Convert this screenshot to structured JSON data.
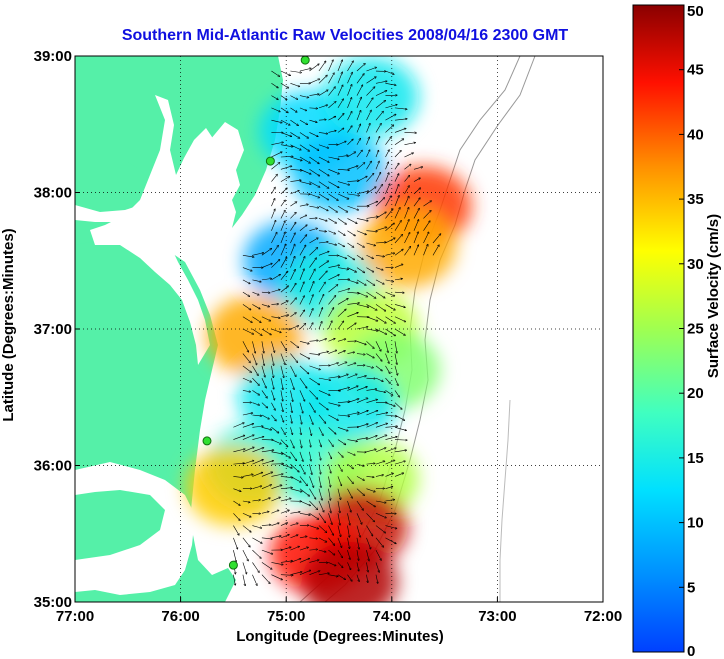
{
  "chart_data": {
    "type": "heatmap",
    "title": "Southern Mid-Atlantic Raw Velocities 2008/04/16 2300 GMT",
    "xlabel": "Longitude (Degrees:Minutes)",
    "ylabel": "Latitude (Degrees:Minutes)",
    "colorbar_label": "Surface Velocity (cm/s)",
    "xlim": [
      -77,
      -72
    ],
    "ylim": [
      35,
      39
    ],
    "x_ticks": [
      {
        "value": -77,
        "label": "77:00"
      },
      {
        "value": -76,
        "label": "76:00"
      },
      {
        "value": -75,
        "label": "75:00"
      },
      {
        "value": -74,
        "label": "74:00"
      },
      {
        "value": -73,
        "label": "73:00"
      },
      {
        "value": -72,
        "label": "72:00"
      }
    ],
    "y_ticks": [
      {
        "value": 35,
        "label": "35:00"
      },
      {
        "value": 36,
        "label": "36:00"
      },
      {
        "value": 37,
        "label": "37:00"
      },
      {
        "value": 38,
        "label": "38:00"
      },
      {
        "value": 39,
        "label": "39:00"
      }
    ],
    "colorbar_range": [
      0,
      50
    ],
    "colorbar_ticks": [
      0,
      5,
      10,
      15,
      20,
      25,
      30,
      35,
      40,
      45,
      50
    ],
    "grid": true,
    "colormap": "jet",
    "land_color": "#55f0a8",
    "title_color": "#1010e0",
    "stations": [
      {
        "lon": -74.82,
        "lat": 38.97
      },
      {
        "lon": -75.15,
        "lat": 38.23
      },
      {
        "lon": -75.75,
        "lat": 36.18
      },
      {
        "lon": -75.5,
        "lat": 35.27
      }
    ],
    "velocity_regions": [
      {
        "lon": -74.8,
        "lat": 38.45,
        "speed": 12
      },
      {
        "lon": -74.2,
        "lat": 38.7,
        "speed": 14
      },
      {
        "lon": -74.5,
        "lat": 38.15,
        "speed": 10
      },
      {
        "lon": -73.7,
        "lat": 37.9,
        "speed": 42
      },
      {
        "lon": -73.85,
        "lat": 37.6,
        "speed": 36
      },
      {
        "lon": -74.95,
        "lat": 37.5,
        "speed": 8
      },
      {
        "lon": -74.6,
        "lat": 37.3,
        "speed": 15
      },
      {
        "lon": -74.2,
        "lat": 37.0,
        "speed": 27
      },
      {
        "lon": -74.0,
        "lat": 36.7,
        "speed": 23
      },
      {
        "lon": -75.3,
        "lat": 36.95,
        "speed": 36
      },
      {
        "lon": -75.0,
        "lat": 36.5,
        "speed": 14
      },
      {
        "lon": -74.4,
        "lat": 36.45,
        "speed": 14
      },
      {
        "lon": -75.3,
        "lat": 36.0,
        "speed": 16
      },
      {
        "lon": -74.7,
        "lat": 36.0,
        "speed": 17
      },
      {
        "lon": -74.2,
        "lat": 35.9,
        "speed": 26
      },
      {
        "lon": -75.5,
        "lat": 35.85,
        "speed": 34
      },
      {
        "lon": -74.3,
        "lat": 35.55,
        "speed": 47
      },
      {
        "lon": -74.7,
        "lat": 35.35,
        "speed": 44
      },
      {
        "lon": -74.4,
        "lat": 35.15,
        "speed": 48
      }
    ]
  }
}
